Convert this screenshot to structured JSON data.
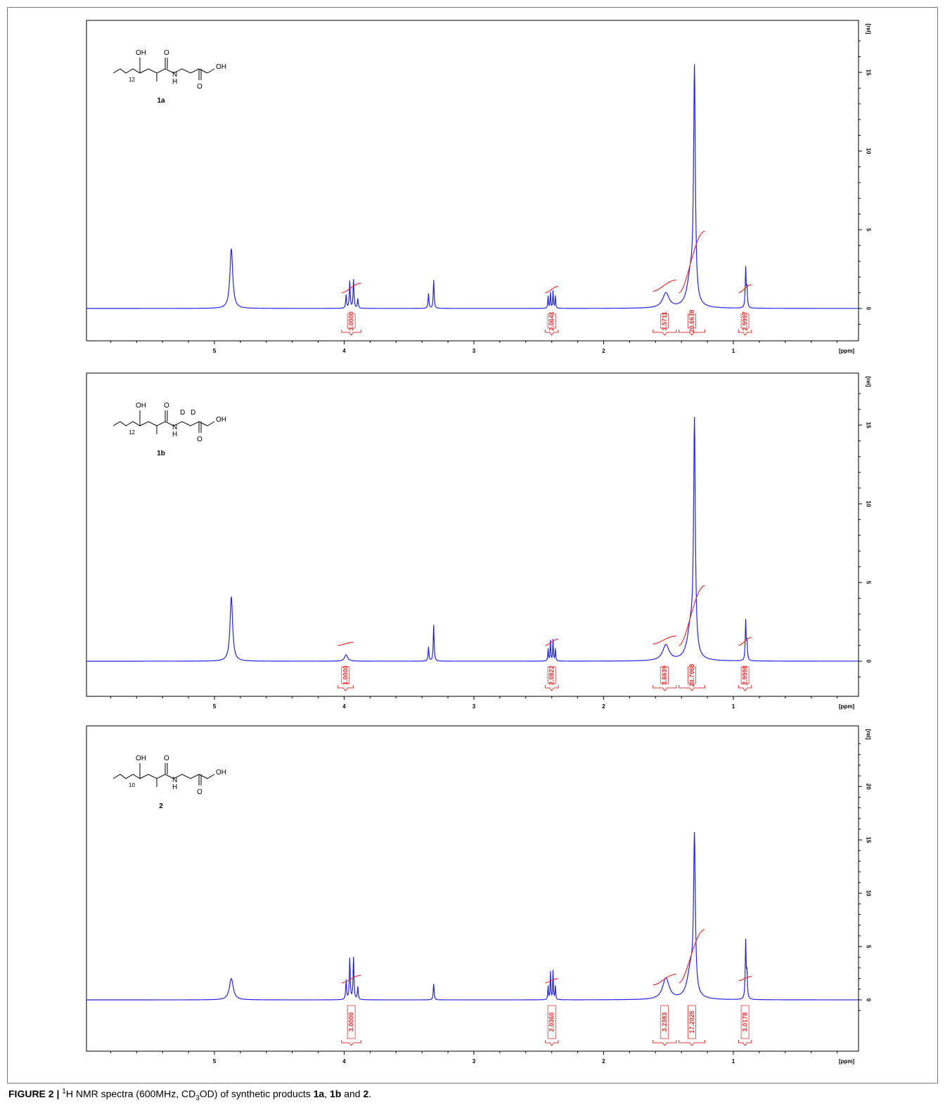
{
  "colors": {
    "spectrum": "#2222ee",
    "integral": "#e83030",
    "axis": "#000000"
  },
  "caption": {
    "figure_label": "FIGURE 2 |",
    "nucleus_sup": "1",
    "text_1": "H NMR spectra (600MHz, CD",
    "sub": "3",
    "text_2": "OD) of synthetic products",
    "c1": "1a",
    "sep1": ",",
    "c2": "1b",
    "sep2": "and",
    "c3": "2",
    "end": "."
  },
  "chart_data": [
    {
      "type": "line",
      "compound": "1a",
      "structure": {
        "hydroxyl": "OH",
        "chain_count": "12",
        "nh": "N",
        "h": "H",
        "oxygen": "O",
        "acid_oh": "OH",
        "deuterium": "",
        "label": "1a"
      },
      "xlabel": "[ppm]",
      "ylabel": "[rel]",
      "xlim": [
        6.0,
        0.0
      ],
      "ylim": [
        -2.0,
        17.5
      ],
      "x_ticks": [
        "5",
        "4",
        "3",
        "2",
        "1"
      ],
      "y_ticks": [
        "0",
        "5",
        "10",
        "15"
      ],
      "peaks": [
        {
          "ppm": 4.87,
          "height": 3.8,
          "width": 0.013
        },
        {
          "ppm": 3.985,
          "height": 0.85,
          "width": 0.004
        },
        {
          "ppm": 3.957,
          "height": 1.75,
          "width": 0.004
        },
        {
          "ppm": 3.928,
          "height": 1.85,
          "width": 0.004
        },
        {
          "ppm": 3.895,
          "height": 0.6,
          "width": 0.004
        },
        {
          "ppm": 3.35,
          "height": 0.95,
          "width": 0.004
        },
        {
          "ppm": 3.31,
          "height": 1.8,
          "width": 0.004
        },
        {
          "ppm": 2.428,
          "height": 0.8,
          "width": 0.003
        },
        {
          "ppm": 2.41,
          "height": 1.0,
          "width": 0.003
        },
        {
          "ppm": 2.39,
          "height": 1.1,
          "width": 0.003
        },
        {
          "ppm": 2.372,
          "height": 0.8,
          "width": 0.003
        },
        {
          "ppm": 1.52,
          "height": 0.95,
          "width": 0.03
        },
        {
          "ppm": 1.3,
          "height": 14.5,
          "width": 0.008
        },
        {
          "ppm": 1.33,
          "height": 2.0,
          "width": 0.03
        },
        {
          "ppm": 0.905,
          "height": 2.5,
          "width": 0.004
        },
        {
          "ppm": 0.895,
          "height": 1.2,
          "width": 0.004
        }
      ],
      "integrals": [
        {
          "from": 4.02,
          "to": 3.87,
          "value": "3.0000",
          "y0": 1.0,
          "y1": 1.6
        },
        {
          "from": 2.45,
          "to": 2.35,
          "value": "2.0641",
          "y0": 1.0,
          "y1": 1.4
        },
        {
          "from": 1.62,
          "to": 1.44,
          "value": "3.5711",
          "y0": 1.1,
          "y1": 1.8
        },
        {
          "from": 1.42,
          "to": 1.22,
          "value": "20.6678",
          "y0": 1.0,
          "y1": 4.9
        },
        {
          "from": 0.96,
          "to": 0.86,
          "value": "2.9997",
          "y0": 1.0,
          "y1": 1.5
        }
      ]
    },
    {
      "type": "line",
      "compound": "1b",
      "structure": {
        "hydroxyl": "OH",
        "chain_count": "12",
        "nh": "N",
        "h": "H",
        "oxygen": "O",
        "acid_oh": "OH",
        "deuterium": "D",
        "label": "1b"
      },
      "xlabel": "[ppm]",
      "ylabel": "[rel]",
      "xlim": [
        6.0,
        0.0
      ],
      "ylim": [
        -2.0,
        17.5
      ],
      "x_ticks": [
        "5",
        "4",
        "3",
        "2",
        "1"
      ],
      "y_ticks": [
        "0",
        "5",
        "10",
        "15"
      ],
      "peaks": [
        {
          "ppm": 4.87,
          "height": 4.1,
          "width": 0.012
        },
        {
          "ppm": 3.985,
          "height": 0.4,
          "width": 0.015
        },
        {
          "ppm": 3.35,
          "height": 0.9,
          "width": 0.004
        },
        {
          "ppm": 3.31,
          "height": 2.3,
          "width": 0.004
        },
        {
          "ppm": 2.428,
          "height": 0.8,
          "width": 0.003
        },
        {
          "ppm": 2.41,
          "height": 1.3,
          "width": 0.003
        },
        {
          "ppm": 2.39,
          "height": 1.35,
          "width": 0.003
        },
        {
          "ppm": 2.372,
          "height": 0.8,
          "width": 0.003
        },
        {
          "ppm": 1.52,
          "height": 1.0,
          "width": 0.03
        },
        {
          "ppm": 1.3,
          "height": 14.5,
          "width": 0.008
        },
        {
          "ppm": 1.33,
          "height": 2.0,
          "width": 0.03
        },
        {
          "ppm": 0.905,
          "height": 2.5,
          "width": 0.004
        },
        {
          "ppm": 0.895,
          "height": 1.1,
          "width": 0.004
        }
      ],
      "integrals": [
        {
          "from": 4.05,
          "to": 3.93,
          "value": "1.0000",
          "y0": 1.0,
          "y1": 1.2
        },
        {
          "from": 2.45,
          "to": 2.35,
          "value": "2.0822",
          "y0": 1.0,
          "y1": 1.4
        },
        {
          "from": 1.62,
          "to": 1.44,
          "value": "3.6639",
          "y0": 1.1,
          "y1": 1.6
        },
        {
          "from": 1.42,
          "to": 1.22,
          "value": "20.7968",
          "y0": 1.0,
          "y1": 4.8
        },
        {
          "from": 0.96,
          "to": 0.86,
          "value": "2.9998",
          "y0": 1.0,
          "y1": 1.5
        }
      ]
    },
    {
      "type": "line",
      "compound": "2",
      "structure": {
        "hydroxyl": "OH",
        "chain_count": "10",
        "nh": "N",
        "h": "H",
        "oxygen": "O",
        "acid_oh": "OH",
        "deuterium": "",
        "label": "2"
      },
      "xlabel": "[ppm]",
      "ylabel": "[rel]",
      "xlim": [
        6.0,
        0.0
      ],
      "ylim": [
        -3.0,
        24.5
      ],
      "x_ticks": [
        "5",
        "4",
        "3",
        "2",
        "1"
      ],
      "y_ticks": [
        "0",
        "5",
        "10",
        "15",
        "20"
      ],
      "peaks": [
        {
          "ppm": 4.87,
          "height": 2.0,
          "width": 0.018
        },
        {
          "ppm": 3.985,
          "height": 1.8,
          "width": 0.004
        },
        {
          "ppm": 3.957,
          "height": 3.9,
          "width": 0.004
        },
        {
          "ppm": 3.928,
          "height": 4.0,
          "width": 0.004
        },
        {
          "ppm": 3.895,
          "height": 1.2,
          "width": 0.004
        },
        {
          "ppm": 3.31,
          "height": 1.5,
          "width": 0.004
        },
        {
          "ppm": 2.428,
          "height": 1.3,
          "width": 0.003
        },
        {
          "ppm": 2.41,
          "height": 2.6,
          "width": 0.003
        },
        {
          "ppm": 2.39,
          "height": 2.7,
          "width": 0.003
        },
        {
          "ppm": 2.372,
          "height": 1.3,
          "width": 0.003
        },
        {
          "ppm": 1.52,
          "height": 2.0,
          "width": 0.03
        },
        {
          "ppm": 1.3,
          "height": 14.3,
          "width": 0.008
        },
        {
          "ppm": 1.33,
          "height": 2.8,
          "width": 0.03
        },
        {
          "ppm": 0.905,
          "height": 5.4,
          "width": 0.004
        },
        {
          "ppm": 0.895,
          "height": 2.3,
          "width": 0.004
        }
      ],
      "integrals": [
        {
          "from": 4.02,
          "to": 3.87,
          "value": "3.0000",
          "y0": 1.6,
          "y1": 2.3
        },
        {
          "from": 2.45,
          "to": 2.35,
          "value": "2.0360",
          "y0": 1.6,
          "y1": 2.0
        },
        {
          "from": 1.62,
          "to": 1.44,
          "value": "3.2383",
          "y0": 1.4,
          "y1": 2.4
        },
        {
          "from": 1.42,
          "to": 1.22,
          "value": "17.2026",
          "y0": 1.6,
          "y1": 6.6
        },
        {
          "from": 0.96,
          "to": 0.86,
          "value": "3.0178",
          "y0": 1.8,
          "y1": 2.2
        }
      ]
    }
  ]
}
